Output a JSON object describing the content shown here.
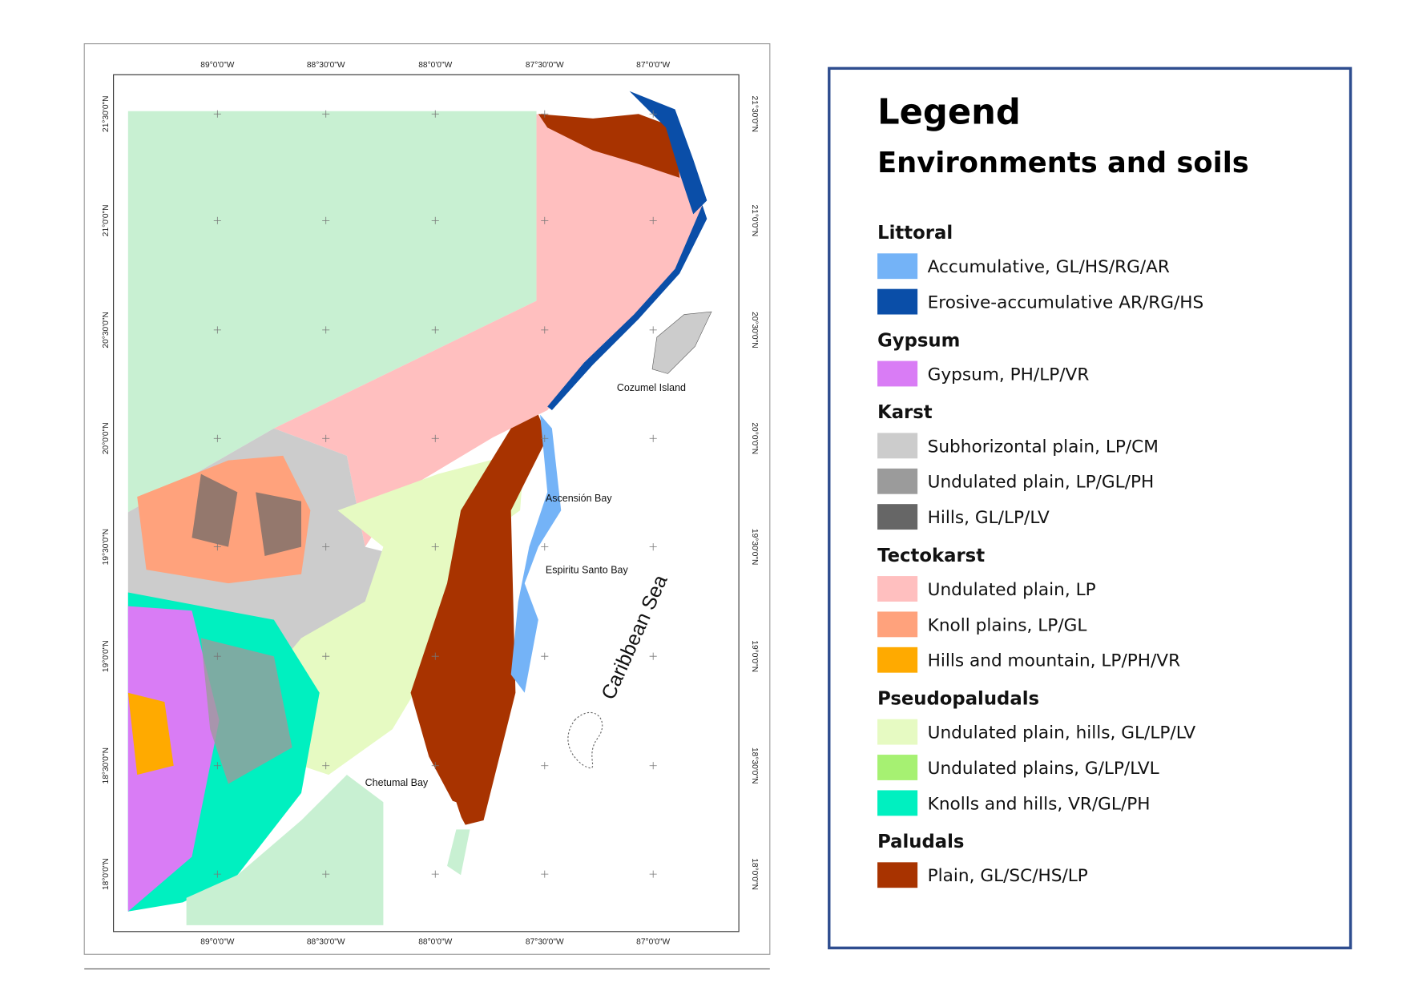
{
  "map": {
    "x_labels": [
      "89°0'0\"W",
      "88°30'0\"W",
      "88°0'0\"W",
      "87°30'0\"W",
      "87°0'0\"W"
    ],
    "y_labels": [
      "21°30'0\"N",
      "21°0'0\"N",
      "20°30'0\"N",
      "20°0'0\"N",
      "19°30'0\"N",
      "19°0'0\"N",
      "18°30'0\"N",
      "18°0'0\"N"
    ],
    "places": [
      "Cozumel Island",
      "Ascensión Bay",
      "Espiritu Santo Bay",
      "Chetumal Bay"
    ],
    "sea_label": "Caribbean Sea"
  },
  "legend": {
    "title": "Legend",
    "subtitle": "Environments and soils",
    "groups": [
      {
        "name": "Littoral",
        "items": [
          {
            "label": "Accumulative, GL/HS/RG/AR",
            "color": "#74b3f7"
          },
          {
            "label": "Erosive-accumulative AR/RG/HS",
            "color": "#0a4ea8"
          }
        ]
      },
      {
        "name": "Gypsum",
        "items": [
          {
            "label": "Gypsum, PH/LP/VR",
            "color": "#d97cf5"
          }
        ]
      },
      {
        "name": "Karst",
        "items": [
          {
            "label": "Subhorizontal plain, LP/CM",
            "color": "#cccccc"
          },
          {
            "label": "Undulated plain, LP/GL/PH",
            "color": "#9b9b9b"
          },
          {
            "label": "Hills, GL/LP/LV",
            "color": "#666666"
          }
        ]
      },
      {
        "name": "Tectokarst",
        "items": [
          {
            "label": "Undulated plain, LP",
            "color": "#ffbfbf"
          },
          {
            "label": "Knoll plains, LP/GL",
            "color": "#ffa27c"
          },
          {
            "label": "Hills and mountain, LP/PH/VR",
            "color": "#ffaa00"
          }
        ]
      },
      {
        "name": "Pseudopaludals",
        "items": [
          {
            "label": "Undulated plain, hills, GL/LP/LV",
            "color": "#e6fac2"
          },
          {
            "label": "Undulated plains, G/LP/LVL",
            "color": "#a6f172"
          },
          {
            "label": "Knolls and hills, VR/GL/PH",
            "color": "#00f0c0"
          }
        ]
      },
      {
        "name": "Paludals",
        "items": [
          {
            "label": "Plain, GL/SC/HS/LP",
            "color": "#a83300"
          }
        ]
      }
    ]
  }
}
